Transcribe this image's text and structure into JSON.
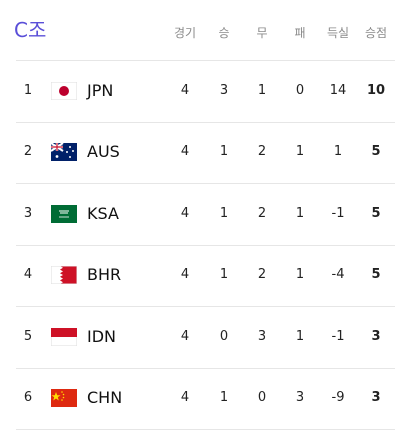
{
  "title": "C조",
  "table": {
    "header": [
      "경기",
      "승",
      "무",
      "패",
      "득실",
      "승점"
    ],
    "rows": [
      [
        1,
        "JPN",
        4,
        3,
        1,
        0,
        14,
        10
      ],
      [
        2,
        "AUS",
        4,
        1,
        2,
        1,
        1,
        5
      ],
      [
        3,
        "KSA",
        4,
        1,
        2,
        1,
        -1,
        5
      ],
      [
        4,
        "BHR",
        4,
        1,
        2,
        1,
        -4,
        5
      ],
      [
        5,
        "IDN",
        4,
        0,
        3,
        1,
        -1,
        3
      ],
      [
        6,
        "CHN",
        4,
        1,
        0,
        3,
        -9,
        3
      ]
    ]
  }
}
